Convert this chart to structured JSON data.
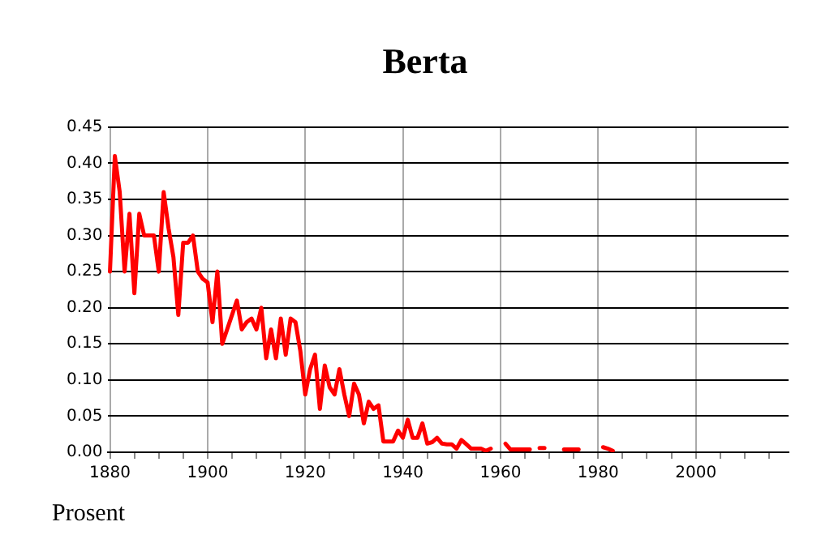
{
  "chart_data": {
    "type": "line",
    "title": "Berta",
    "ylabel": "Prosent",
    "x": [
      1880,
      1881,
      1882,
      1883,
      1884,
      1885,
      1886,
      1887,
      1888,
      1889,
      1890,
      1891,
      1892,
      1893,
      1894,
      1895,
      1896,
      1897,
      1898,
      1899,
      1900,
      1901,
      1902,
      1903,
      1904,
      1905,
      1906,
      1907,
      1908,
      1909,
      1910,
      1911,
      1912,
      1913,
      1914,
      1915,
      1916,
      1917,
      1918,
      1919,
      1920,
      1921,
      1922,
      1923,
      1924,
      1925,
      1926,
      1927,
      1928,
      1929,
      1930,
      1931,
      1932,
      1933,
      1934,
      1935,
      1936,
      1937,
      1938,
      1939,
      1940,
      1941,
      1942,
      1943,
      1944,
      1945,
      1946,
      1947,
      1948,
      1949,
      1950,
      1951,
      1952,
      1953,
      1954,
      1955,
      1956,
      1957,
      1958
    ],
    "series": [
      {
        "color": "#ff0000",
        "values": [
          0.25,
          0.41,
          0.36,
          0.25,
          0.33,
          0.22,
          0.33,
          0.3,
          0.3,
          0.3,
          0.25,
          0.36,
          0.31,
          0.27,
          0.19,
          0.29,
          0.29,
          0.3,
          0.25,
          0.24,
          0.235,
          0.18,
          0.25,
          0.15,
          0.17,
          0.19,
          0.21,
          0.17,
          0.18,
          0.185,
          0.17,
          0.2,
          0.13,
          0.17,
          0.13,
          0.185,
          0.135,
          0.185,
          0.18,
          0.14,
          0.08,
          0.115,
          0.135,
          0.06,
          0.12,
          0.09,
          0.08,
          0.115,
          0.08,
          0.05,
          0.095,
          0.08,
          0.04,
          0.07,
          0.06,
          0.065,
          0.015,
          0.015,
          0.015,
          0.03,
          0.02,
          0.045,
          0.02,
          0.02,
          0.04,
          0.012,
          0.014,
          0.02,
          0.012,
          0.011,
          0.011,
          0.005,
          0.017,
          0.011,
          0.005,
          0.005,
          0.005,
          0.002,
          0.005
        ]
      },
      {
        "color": "#fe0000",
        "x": [
          1961,
          1962,
          1963,
          1964,
          1965,
          1966
        ],
        "values": [
          0.012,
          0.004,
          0.004,
          0.004,
          0.004,
          0.004
        ]
      },
      {
        "color": "#fd0000",
        "x": [
          1968,
          1969
        ],
        "values": [
          0.006,
          0.006
        ]
      },
      {
        "color": "#fc0000",
        "x": [
          1973,
          1974,
          1975,
          1976
        ],
        "values": [
          0.004,
          0.004,
          0.004,
          0.004
        ]
      },
      {
        "color": "#fb0000",
        "x": [
          1981,
          1982,
          1983
        ],
        "values": [
          0.007,
          0.005,
          0.002
        ]
      }
    ],
    "xlim": [
      1879.5,
      2019
    ],
    "xticks": [
      1880,
      {
        "value": 1885,
        "label": null
      },
      {
        "value": 1890,
        "label": null
      },
      {
        "value": 1895,
        "label": null
      },
      1900,
      {
        "value": 1905,
        "label": null
      },
      {
        "value": 1910,
        "label": null
      },
      {
        "value": 1915,
        "label": null
      },
      1920,
      {
        "value": 1925,
        "label": null
      },
      {
        "value": 1930,
        "label": null
      },
      {
        "value": 1935,
        "label": null
      },
      1940,
      {
        "value": 1945,
        "label": null
      },
      {
        "value": 1950,
        "label": null
      },
      {
        "value": 1955,
        "label": null
      },
      1960,
      {
        "value": 1965,
        "label": null
      },
      {
        "value": 1970,
        "label": null
      },
      {
        "value": 1975,
        "label": null
      },
      1980,
      {
        "value": 1985,
        "label": null
      },
      {
        "value": 1990,
        "label": null
      },
      {
        "value": 1995,
        "label": null
      },
      2000,
      {
        "value": 2005,
        "label": null
      },
      {
        "value": 2010,
        "label": null
      },
      {
        "value": 2015,
        "label": null
      }
    ],
    "ylim": [
      0,
      0.45
    ],
    "yticks": [
      {
        "value": 0,
        "label": "0.00"
      },
      {
        "value": 0.05,
        "label": "0.05"
      },
      {
        "value": 0.1,
        "label": "0.10"
      },
      {
        "value": 0.15,
        "label": "0.15"
      },
      {
        "value": 0.2,
        "label": "0.20"
      },
      {
        "value": 0.25,
        "label": "0.25"
      },
      {
        "value": 0.3,
        "label": "0.30"
      },
      {
        "value": 0.35,
        "label": "0.35"
      },
      {
        "value": 0.4,
        "label": "0.40"
      },
      {
        "value": 0.45,
        "label": "0.45"
      }
    ],
    "grid": true,
    "legend": false,
    "marker": "none",
    "line_style": "solid"
  }
}
